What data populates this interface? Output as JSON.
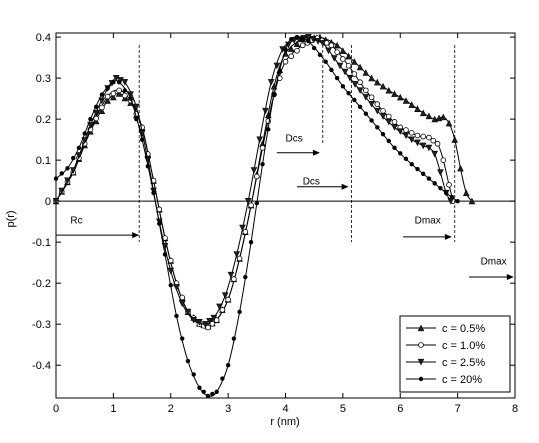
{
  "chart_data": {
    "type": "line",
    "xlabel": "r (nm)",
    "ylabel": "p(r)",
    "xlim": [
      0,
      8
    ],
    "ylim": [
      -0.48,
      0.41
    ],
    "xticks": [
      "0",
      "1",
      "2",
      "3",
      "4",
      "5",
      "6",
      "7",
      "8"
    ],
    "yticks": [
      "-0.4",
      "-0.3",
      "-0.2",
      "-0.1",
      "0",
      "0.1",
      "0.2",
      "0.3",
      "0.4"
    ],
    "grid": false,
    "legend_position": "bottom-right",
    "series": [
      {
        "name": "c = 0.5%",
        "marker": "triangle-up",
        "points": [
          [
            0,
            0
          ],
          [
            0.3,
            0.07
          ],
          [
            0.6,
            0.17
          ],
          [
            0.9,
            0.245
          ],
          [
            1.1,
            0.262
          ],
          [
            1.3,
            0.24
          ],
          [
            1.5,
            0.18
          ],
          [
            1.7,
            0.05
          ],
          [
            1.9,
            -0.09
          ],
          [
            2.1,
            -0.2
          ],
          [
            2.3,
            -0.27
          ],
          [
            2.5,
            -0.298
          ],
          [
            2.65,
            -0.305
          ],
          [
            2.8,
            -0.29
          ],
          [
            3.0,
            -0.24
          ],
          [
            3.2,
            -0.14
          ],
          [
            3.4,
            -0.01
          ],
          [
            3.6,
            0.14
          ],
          [
            3.8,
            0.28
          ],
          [
            4.0,
            0.36
          ],
          [
            4.3,
            0.395
          ],
          [
            4.6,
            0.4
          ],
          [
            4.9,
            0.38
          ],
          [
            5.2,
            0.34
          ],
          [
            5.5,
            0.3
          ],
          [
            5.8,
            0.27
          ],
          [
            6.1,
            0.245
          ],
          [
            6.4,
            0.215
          ],
          [
            6.6,
            0.2
          ],
          [
            6.75,
            0.205
          ],
          [
            6.85,
            0.19
          ],
          [
            6.95,
            0.15
          ],
          [
            7.05,
            0.08
          ],
          [
            7.15,
            0.02
          ],
          [
            7.25,
            0.0
          ]
        ]
      },
      {
        "name": "c = 1.0%",
        "marker": "circle-open",
        "points": [
          [
            0,
            0
          ],
          [
            0.3,
            0.07
          ],
          [
            0.6,
            0.175
          ],
          [
            0.9,
            0.255
          ],
          [
            1.1,
            0.27
          ],
          [
            1.3,
            0.245
          ],
          [
            1.5,
            0.18
          ],
          [
            1.7,
            0.05
          ],
          [
            1.9,
            -0.09
          ],
          [
            2.1,
            -0.2
          ],
          [
            2.3,
            -0.27
          ],
          [
            2.5,
            -0.3
          ],
          [
            2.65,
            -0.308
          ],
          [
            2.8,
            -0.29
          ],
          [
            3.0,
            -0.24
          ],
          [
            3.2,
            -0.14
          ],
          [
            3.4,
            -0.01
          ],
          [
            3.6,
            0.13
          ],
          [
            3.8,
            0.26
          ],
          [
            4.0,
            0.34
          ],
          [
            4.3,
            0.38
          ],
          [
            4.55,
            0.398
          ],
          [
            4.8,
            0.38
          ],
          [
            5.1,
            0.33
          ],
          [
            5.4,
            0.27
          ],
          [
            5.7,
            0.22
          ],
          [
            6.0,
            0.18
          ],
          [
            6.3,
            0.16
          ],
          [
            6.5,
            0.155
          ],
          [
            6.65,
            0.14
          ],
          [
            6.75,
            0.1
          ],
          [
            6.85,
            0.04
          ],
          [
            6.92,
            0.0
          ]
        ]
      },
      {
        "name": "c = 2.5%",
        "marker": "triangle-down",
        "points": [
          [
            0,
            0
          ],
          [
            0.3,
            0.075
          ],
          [
            0.6,
            0.185
          ],
          [
            0.9,
            0.275
          ],
          [
            1.05,
            0.3
          ],
          [
            1.2,
            0.29
          ],
          [
            1.4,
            0.23
          ],
          [
            1.6,
            0.1
          ],
          [
            1.8,
            -0.05
          ],
          [
            2.0,
            -0.17
          ],
          [
            2.2,
            -0.25
          ],
          [
            2.4,
            -0.29
          ],
          [
            2.6,
            -0.3
          ],
          [
            2.75,
            -0.285
          ],
          [
            2.95,
            -0.23
          ],
          [
            3.15,
            -0.13
          ],
          [
            3.35,
            0.0
          ],
          [
            3.55,
            0.15
          ],
          [
            3.75,
            0.29
          ],
          [
            3.95,
            0.37
          ],
          [
            4.15,
            0.392
          ],
          [
            4.4,
            0.4
          ],
          [
            4.65,
            0.385
          ],
          [
            4.95,
            0.33
          ],
          [
            5.3,
            0.27
          ],
          [
            5.6,
            0.22
          ],
          [
            5.9,
            0.18
          ],
          [
            6.2,
            0.15
          ],
          [
            6.4,
            0.135
          ],
          [
            6.5,
            0.13
          ],
          [
            6.6,
            0.115
          ],
          [
            6.7,
            0.07
          ],
          [
            6.8,
            0.02
          ],
          [
            6.88,
            0.0
          ]
        ]
      },
      {
        "name": "c = 20%",
        "marker": "filled-dot",
        "points": [
          [
            0,
            0.055
          ],
          [
            0.2,
            0.08
          ],
          [
            0.4,
            0.13
          ],
          [
            0.6,
            0.2
          ],
          [
            0.8,
            0.26
          ],
          [
            1.0,
            0.29
          ],
          [
            1.1,
            0.29
          ],
          [
            1.3,
            0.25
          ],
          [
            1.5,
            0.15
          ],
          [
            1.7,
            0.02
          ],
          [
            1.9,
            -0.13
          ],
          [
            2.1,
            -0.28
          ],
          [
            2.3,
            -0.39
          ],
          [
            2.5,
            -0.455
          ],
          [
            2.65,
            -0.475
          ],
          [
            2.8,
            -0.465
          ],
          [
            3.0,
            -0.4
          ],
          [
            3.2,
            -0.27
          ],
          [
            3.4,
            -0.1
          ],
          [
            3.6,
            0.09
          ],
          [
            3.8,
            0.26
          ],
          [
            4.0,
            0.37
          ],
          [
            4.1,
            0.395
          ],
          [
            4.2,
            0.4
          ],
          [
            4.4,
            0.39
          ],
          [
            4.7,
            0.34
          ],
          [
            5.0,
            0.28
          ],
          [
            5.3,
            0.23
          ],
          [
            5.6,
            0.18
          ],
          [
            5.9,
            0.13
          ],
          [
            6.2,
            0.09
          ],
          [
            6.5,
            0.055
          ],
          [
            6.8,
            0.02
          ],
          [
            7.0,
            0.0
          ]
        ]
      }
    ],
    "annotations": [
      {
        "label": "Rc",
        "x": 0.25,
        "y": -0.055,
        "arrow_from": 0,
        "arrow_to": 1.45,
        "arrow_y": -0.083,
        "vline_x": 1.45
      },
      {
        "label": "Dcs",
        "x": 4.0,
        "y": 0.145,
        "arrow_from": 3.85,
        "arrow_to": 4.6,
        "arrow_y": 0.118,
        "vline_x": 4.65
      },
      {
        "label": "Dcs",
        "x": 4.3,
        "y": 0.04,
        "arrow_from": 4.2,
        "arrow_to": 5.1,
        "arrow_y": 0.035,
        "vline_x": 5.15
      },
      {
        "label": "Dmax",
        "x": 6.25,
        "y": -0.055,
        "arrow_from": 6.05,
        "arrow_to": 6.9,
        "arrow_y": -0.087,
        "vline_x": 6.95
      },
      {
        "label": "Dmax",
        "x": 7.4,
        "y": -0.155,
        "arrow_from": 7.2,
        "arrow_to": 7.98,
        "arrow_y": -0.185,
        "vline_x": 8.0
      }
    ]
  }
}
